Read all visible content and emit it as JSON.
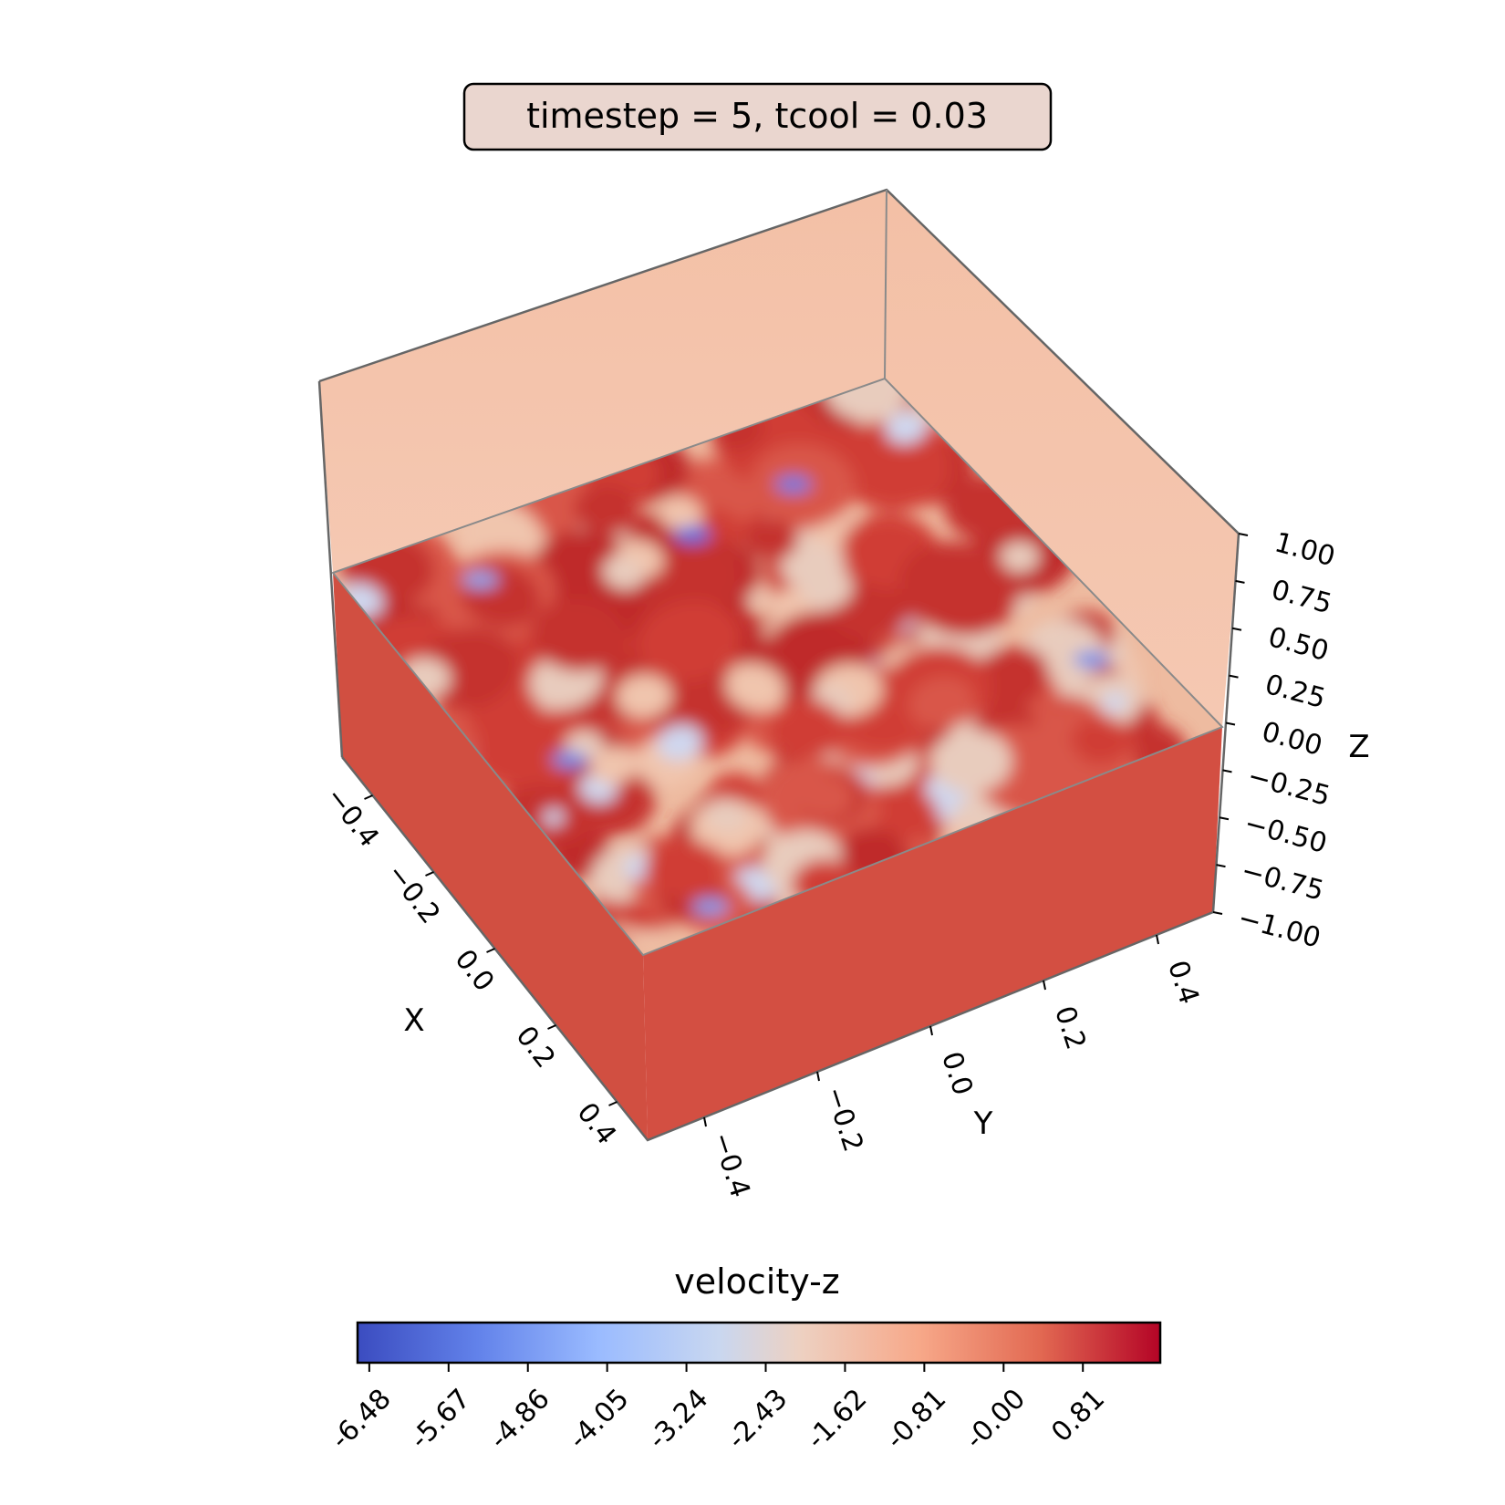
{
  "chart_data": {
    "type": "3d-surface",
    "title": "timestep = 5, tcool = 0.03",
    "xlabel": "X",
    "ylabel": "Y",
    "zlabel": "Z",
    "x_ticks": [
      "−0.4",
      "−0.2",
      "0.0",
      "0.2",
      "0.4"
    ],
    "y_ticks": [
      "−0.4",
      "−0.2",
      "0.0",
      "0.2",
      "0.4"
    ],
    "z_ticks": [
      "−1.00",
      "−0.75",
      "−0.50",
      "−0.25",
      "0.00",
      "0.25",
      "0.50",
      "0.75",
      "1.00"
    ],
    "xlim": [
      -0.5,
      0.5
    ],
    "ylim": [
      -0.5,
      0.5
    ],
    "zlim": [
      -1.0,
      1.0
    ],
    "slice_z": 0.0,
    "colorbar": {
      "label": "velocity-z",
      "colormap": "coolwarm",
      "ticks": [
        "-6.48",
        "-5.67",
        "-4.86",
        "-4.05",
        "-3.24",
        "-2.43",
        "-1.62",
        "-0.81",
        "-0.00",
        "0.81"
      ],
      "range": [
        -6.6,
        1.6
      ]
    },
    "colors": {
      "box_background": "#f3c1a8",
      "side_faces": "#d24f42",
      "title_box_fill": "#ead6cf"
    }
  }
}
